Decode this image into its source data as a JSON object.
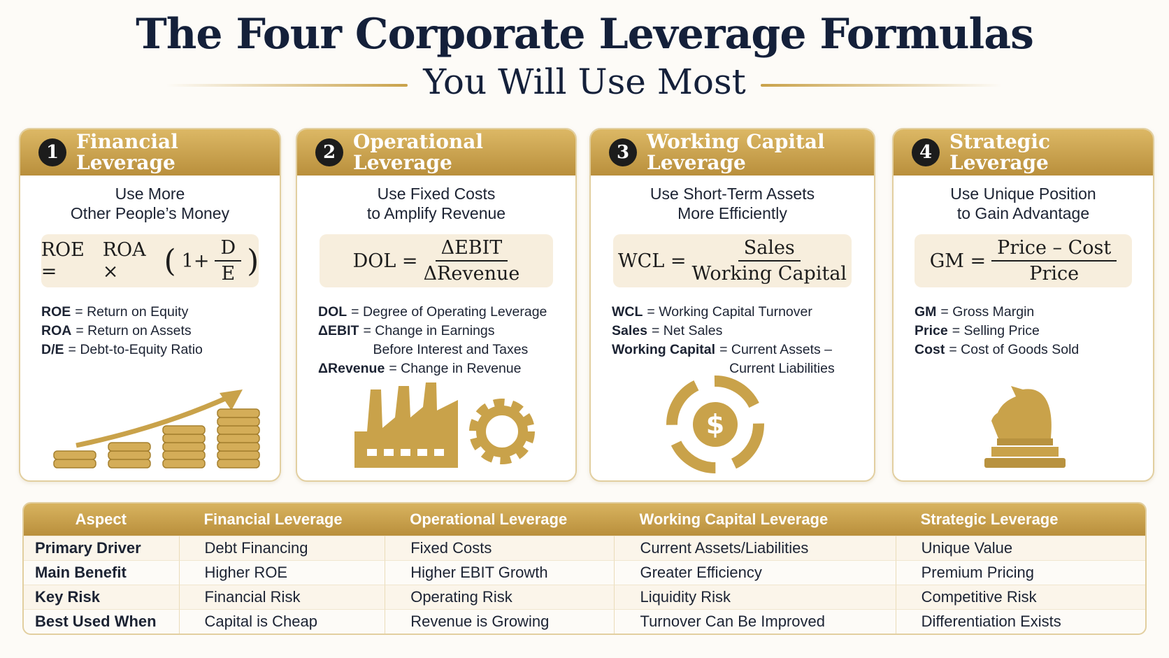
{
  "header": {
    "title": "The Four Corporate Leverage Formulas",
    "subtitle": "You Will Use Most"
  },
  "cards": [
    {
      "number": "1",
      "title": "Financial Leverage",
      "subtitle": [
        "Use More",
        "Other People’s Money"
      ],
      "formula": {
        "lhs": "ROE =",
        "rhs": "ROA ×",
        "open": "(",
        "inner": "1+",
        "numerator": "D",
        "denominator": "E",
        "close": ")"
      },
      "definitions": [
        {
          "term": "ROE",
          "lines": [
            "= Return on Equity"
          ]
        },
        {
          "term": "ROA",
          "lines": [
            "= Return on Assets"
          ]
        },
        {
          "term": "D/E",
          "lines": [
            "= Debt-to-Equity Ratio"
          ]
        }
      ]
    },
    {
      "number": "2",
      "title": "Operational Leverage",
      "subtitle": [
        "Use Fixed Costs",
        "to Amplify Revenue"
      ],
      "formula": {
        "lhs": "DOL =",
        "numerator": "ΔEBIT",
        "denominator": "ΔRevenue"
      },
      "definitions": [
        {
          "term": "DOL",
          "lines": [
            "= Degree of Operating Leverage"
          ]
        },
        {
          "term": "ΔEBIT",
          "lines": [
            "= Change in Earnings",
            "Before Interest and Taxes"
          ]
        },
        {
          "term": "ΔRevenue",
          "lines": [
            "= Change in Revenue"
          ]
        }
      ]
    },
    {
      "number": "3",
      "title": "Working Capital Leverage",
      "subtitle": [
        "Use Short-Term Assets",
        "More Efficiently"
      ],
      "formula": {
        "lhs": "WCL =",
        "numerator": "Sales",
        "denominator": "Working Capital"
      },
      "definitions": [
        {
          "term": "WCL",
          "lines": [
            "= Working Capital Turnover"
          ]
        },
        {
          "term": "Sales",
          "lines": [
            "= Net Sales"
          ]
        },
        {
          "term": "Working Capital",
          "lines": [
            "= Current Assets –",
            "Current Liabilities"
          ]
        }
      ]
    },
    {
      "number": "4",
      "title": "Strategic Leverage",
      "subtitle": [
        "Use Unique Position",
        "to Gain Advantage"
      ],
      "formula": {
        "lhs": "GM =",
        "numerator": "Price – Cost",
        "denominator": "Price"
      },
      "definitions": [
        {
          "term": "GM",
          "lines": [
            "= Gross Margin"
          ]
        },
        {
          "term": "Price",
          "lines": [
            "= Selling Price"
          ]
        },
        {
          "term": "Cost",
          "lines": [
            "= Cost of Goods Sold"
          ]
        }
      ]
    }
  ],
  "table": {
    "header": [
      "Aspect",
      "Financial Leverage",
      "Operational Leverage",
      "Working Capital Leverage",
      "Strategic Leverage"
    ],
    "rows": [
      [
        "Primary Driver",
        "Debt Financing",
        "Fixed Costs",
        "Current Assets/Liabilities",
        "Unique Value"
      ],
      [
        "Main Benefit",
        "Higher ROE",
        "Higher EBIT Growth",
        "Greater Efficiency",
        "Premium Pricing"
      ],
      [
        "Key Risk",
        "Financial Risk",
        "Operating Risk",
        "Liquidity Risk",
        "Competitive Risk"
      ],
      [
        "Best Used When",
        "Capital is Cheap",
        "Revenue is Growing",
        "Turnover Can Be Improved",
        "Differentiation Exists"
      ]
    ]
  }
}
